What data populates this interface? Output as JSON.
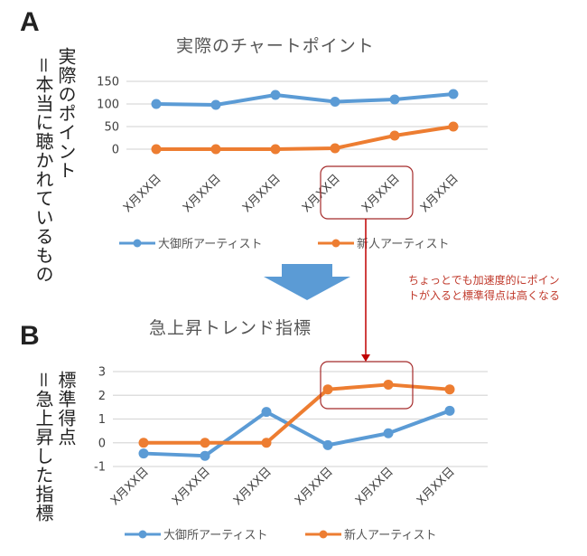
{
  "labels": {
    "a": "A",
    "b": "B"
  },
  "side": {
    "a_main": "実際のポイント",
    "a_sub": "＝本当に聴かれているもの",
    "b_main": "標準得点",
    "b_sub": "＝急上昇した指標"
  },
  "annotation": "ちょっとでも加速度的にポイントが入ると標準得点は高くなる",
  "colors": {
    "blue": "#5b9bd5",
    "orange": "#ed7d31",
    "annotation": "#b22222",
    "arrow": "#5b9bd5"
  },
  "chart_data": [
    {
      "type": "line",
      "title": "実際のチャートポイント",
      "categories": [
        "X月XX日",
        "X月XX日",
        "X月XX日",
        "X月XX日",
        "X月XX日",
        "X月XX日"
      ],
      "yticks": [
        "0",
        "50",
        "100",
        "150"
      ],
      "ylim": [
        0,
        150
      ],
      "grid": true,
      "legend": "bottom",
      "series": [
        {
          "name": "大御所アーティスト",
          "values": [
            100,
            98,
            120,
            105,
            110,
            122
          ]
        },
        {
          "name": "新人アーティスト",
          "values": [
            0,
            0,
            0,
            2,
            30,
            50
          ]
        }
      ]
    },
    {
      "type": "line",
      "title": "急上昇トレンド指標",
      "categories": [
        "X月XX日",
        "X月XX日",
        "X月XX日",
        "X月XX日",
        "X月XX日",
        "X月XX日"
      ],
      "yticks": [
        "-1",
        "0",
        "1",
        "2",
        "3"
      ],
      "ylim": [
        -1,
        3
      ],
      "grid": true,
      "legend": "bottom",
      "series": [
        {
          "name": "大御所アーティスト",
          "values": [
            -0.45,
            -0.55,
            1.3,
            -0.1,
            0.4,
            1.35
          ]
        },
        {
          "name": "新人アーティスト",
          "values": [
            0,
            0,
            0,
            2.25,
            2.45,
            2.25
          ]
        }
      ]
    }
  ]
}
